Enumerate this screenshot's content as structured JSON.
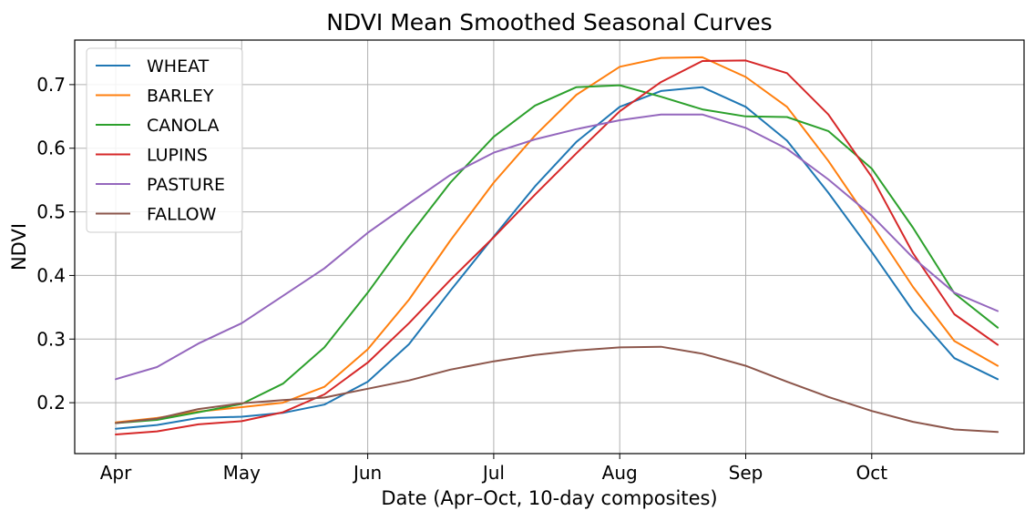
{
  "chart_data": {
    "type": "line",
    "title": "NDVI Mean Smoothed Seasonal Curves",
    "xlabel": "Date (Apr–Oct, 10-day composites)",
    "ylabel": "NDVI",
    "x_tick_labels": [
      "Apr",
      "May",
      "Jun",
      "Jul",
      "Aug",
      "Sep",
      "Oct"
    ],
    "x_tick_values": [
      "Apr",
      "May",
      "Jun",
      "Jul",
      "Aug",
      "Sep",
      "Oct"
    ],
    "x": [
      "Apr 1",
      "Apr 11",
      "Apr 21",
      "May 1",
      "May 11",
      "May 21",
      "Jun 1",
      "Jun 11",
      "Jun 21",
      "Jul 1",
      "Jul 11",
      "Jul 21",
      "Aug 1",
      "Aug 11",
      "Aug 21",
      "Sep 1",
      "Sep 11",
      "Sep 21",
      "Oct 1",
      "Oct 11",
      "Oct 21",
      "Nov 1"
    ],
    "y_ticks": [
      0.2,
      0.3,
      0.4,
      0.5,
      0.6,
      0.7
    ],
    "y_tick_labels": [
      "0.2",
      "0.3",
      "0.4",
      "0.5",
      "0.6",
      "0.7"
    ],
    "ylim": [
      0.12,
      0.77
    ],
    "grid": true,
    "legend_position": "top-left",
    "series": [
      {
        "name": "WHEAT",
        "color": "#1f77b4",
        "values": [
          0.159,
          0.165,
          0.176,
          0.178,
          0.184,
          0.197,
          0.233,
          0.292,
          0.376,
          0.461,
          0.54,
          0.61,
          0.665,
          0.69,
          0.696,
          0.665,
          0.612,
          0.53,
          0.437,
          0.344,
          0.27,
          0.237
        ]
      },
      {
        "name": "BARLEY",
        "color": "#ff7f0e",
        "values": [
          0.169,
          0.176,
          0.186,
          0.193,
          0.2,
          0.225,
          0.284,
          0.362,
          0.455,
          0.546,
          0.62,
          0.684,
          0.728,
          0.742,
          0.743,
          0.712,
          0.665,
          0.58,
          0.48,
          0.382,
          0.297,
          0.258
        ]
      },
      {
        "name": "CANOLA",
        "color": "#2ca02c",
        "values": [
          0.168,
          0.173,
          0.185,
          0.198,
          0.23,
          0.287,
          0.373,
          0.462,
          0.546,
          0.618,
          0.667,
          0.696,
          0.699,
          0.681,
          0.661,
          0.65,
          0.649,
          0.627,
          0.568,
          0.475,
          0.372,
          0.318
        ]
      },
      {
        "name": "LUPINS",
        "color": "#d62728",
        "values": [
          0.15,
          0.155,
          0.166,
          0.171,
          0.185,
          0.213,
          0.263,
          0.325,
          0.393,
          0.46,
          0.527,
          0.592,
          0.658,
          0.704,
          0.737,
          0.738,
          0.718,
          0.653,
          0.555,
          0.435,
          0.339,
          0.291
        ]
      },
      {
        "name": "PASTURE",
        "color": "#9467bd",
        "values": [
          0.237,
          0.256,
          0.293,
          0.325,
          0.368,
          0.411,
          0.467,
          0.513,
          0.558,
          0.593,
          0.614,
          0.63,
          0.644,
          0.653,
          0.653,
          0.632,
          0.599,
          0.551,
          0.494,
          0.428,
          0.373,
          0.344
        ]
      },
      {
        "name": "FALLOW",
        "color": "#8c564b",
        "values": [
          0.168,
          0.175,
          0.19,
          0.199,
          0.204,
          0.208,
          0.222,
          0.235,
          0.252,
          0.265,
          0.275,
          0.282,
          0.287,
          0.288,
          0.277,
          0.258,
          0.233,
          0.209,
          0.187,
          0.17,
          0.158,
          0.154
        ]
      }
    ]
  }
}
